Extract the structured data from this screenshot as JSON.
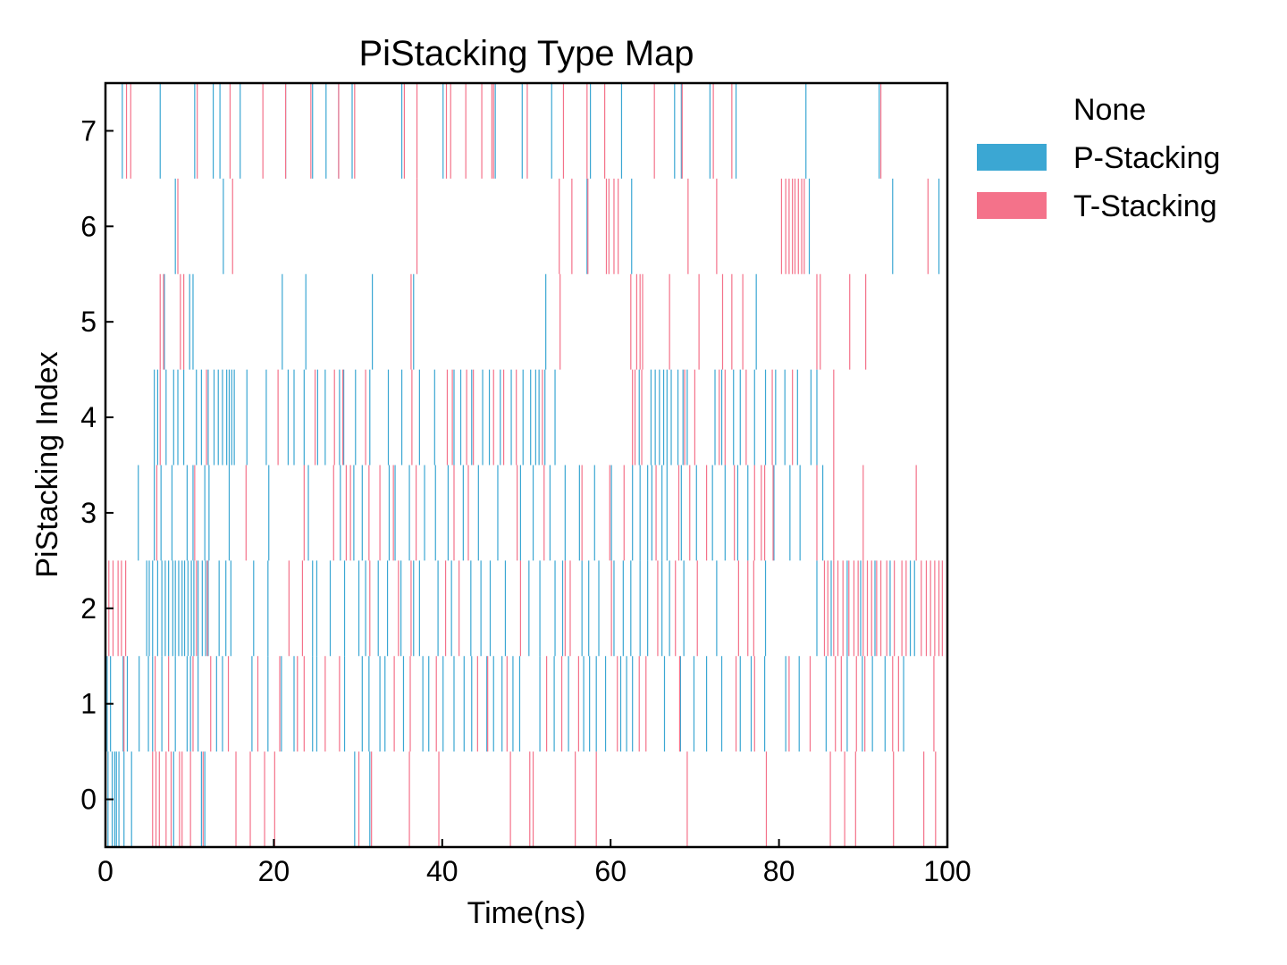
{
  "chart_data": {
    "type": "heatmap",
    "title": "PiStacking Type Map",
    "xlabel": "Time(ns)",
    "ylabel": "PiStacking Index",
    "xlim": [
      0,
      100
    ],
    "ylim": [
      -0.5,
      7.5
    ],
    "x_ticks": [
      "0",
      "20",
      "40",
      "60",
      "80",
      "100"
    ],
    "y_ticks": [
      "0",
      "1",
      "2",
      "3",
      "4",
      "5",
      "6",
      "7"
    ],
    "legend_position": "outside-right",
    "legend": [
      {
        "label": "None",
        "color": "#ffffff"
      },
      {
        "label": "P-Stacking",
        "color": "#3ba7d3"
      },
      {
        "label": "T-Stacking",
        "color": "#f4728a"
      }
    ],
    "rows": [
      {
        "index": 0,
        "p": [
          0.3,
          0.8,
          1.1,
          1.3,
          1.6,
          2.2,
          3.1,
          8.1,
          11.4,
          11.8,
          29.6,
          31.4
        ],
        "t": [
          5.6,
          6.0,
          6.4,
          7.2,
          7.8,
          8.8,
          9.1,
          10.1,
          11.6,
          15.5,
          17.2,
          18.9,
          20.1,
          30.1,
          31.6,
          36.1,
          39.6,
          48.1,
          50.4,
          50.8,
          55.8,
          58.3,
          69.1,
          78.5,
          86.1,
          87.8,
          89.1,
          93.6,
          97.2,
          98.6
        ]
      },
      {
        "index": 1,
        "p": [
          0.2,
          0.6,
          2.1,
          2.6,
          4.0,
          5.1,
          5.6,
          6.7,
          8.3,
          9.7,
          10.1,
          11.0,
          13.2,
          13.9,
          17.4,
          19.3,
          20.9,
          22.4,
          24.6,
          25.1,
          28.4,
          30.5,
          31.3,
          32.6,
          33.2,
          35.4,
          37.7,
          38.4,
          40.1,
          41.4,
          42.6,
          43.5,
          45.3,
          46.1,
          47.1,
          48.4,
          49.2,
          51.6,
          53.3,
          55.0,
          56.8,
          57.5,
          58.3,
          59.4,
          61.2,
          61.9,
          62.6,
          66.4,
          68.3,
          69.9,
          71.4,
          73.2,
          75.4,
          76.7,
          78.3,
          80.8,
          82.4,
          85.6,
          88.1,
          89.9,
          91.1,
          92.6,
          94.8
        ],
        "t": [
          2.2,
          5.9,
          7.5,
          10.4,
          12.5,
          14.6,
          18.1,
          20.7,
          22.8,
          23.6,
          26.1,
          27.8,
          34.3,
          36.2,
          39.3,
          44.2,
          45.4,
          47.7,
          52.4,
          54.2,
          56.2,
          60.8,
          63.4,
          64.2,
          68.2,
          74.9,
          77.1,
          81.2,
          83.7,
          86.7,
          87.4,
          89.2,
          90.2,
          93.5,
          94.2,
          98.4
        ]
      },
      {
        "index": 2,
        "p": [
          4.9,
          5.2,
          5.6,
          6.2,
          6.7,
          7.1,
          7.5,
          8.0,
          8.3,
          8.7,
          9.1,
          9.4,
          9.8,
          10.2,
          10.5,
          11.0,
          11.5,
          11.9,
          12.2,
          13.5,
          14.3,
          14.9,
          17.6,
          19.3,
          24.6,
          25.1,
          26.7,
          28.4,
          30.1,
          30.9,
          32.4,
          33.5,
          35.1,
          36.6,
          37.3,
          39.5,
          41.1,
          43.4,
          44.6,
          45.7,
          47.5,
          50.3,
          51.6,
          53.4,
          54.3,
          56.6,
          57.4,
          58.6,
          60.4,
          61.5,
          62.4,
          63.5,
          64.4,
          66.1,
          67.0,
          68.7,
          72.6,
          78.4,
          84.5,
          86.2,
          88.1,
          89.7,
          91.4,
          93.2,
          95.6,
          96.1
        ],
        "t": [
          0.4,
          0.9,
          1.5,
          1.9,
          2.4,
          10.8,
          12.1,
          21.8,
          23.4,
          31.4,
          34.8,
          36.3,
          40.4,
          42.0,
          49.3,
          54.6,
          55.2,
          60.1,
          65.6,
          67.7,
          70.3,
          75.2,
          76.3,
          77.0,
          85.4,
          85.8,
          86.5,
          87.0,
          87.6,
          88.3,
          88.9,
          89.4,
          90.0,
          90.5,
          91.0,
          91.6,
          92.1,
          92.8,
          93.7,
          94.6,
          95.1,
          96.9,
          97.5,
          98.0,
          98.5,
          99.0,
          99.4
        ]
      },
      {
        "index": 3,
        "p": [
          3.9,
          5.8,
          6.6,
          7.9,
          9.7,
          10.4,
          11.8,
          12.3,
          14.7,
          19.4,
          24.1,
          27.9,
          29.5,
          30.5,
          33.7,
          34.4,
          36.1,
          37.9,
          39.2,
          40.7,
          42.5,
          44.3,
          46.6,
          49.3,
          50.8,
          52.8,
          54.6,
          56.3,
          58.1,
          60.1,
          62.6,
          63.5,
          64.4,
          64.9,
          66.1,
          66.7,
          68.4,
          70.2,
          72.1,
          73.6,
          75.1,
          76.3,
          79.4,
          81.3,
          82.5,
          85.2
        ],
        "t": [
          6.1,
          10.6,
          16.7,
          23.6,
          27.1,
          28.6,
          29.1,
          31.3,
          32.6,
          34.2,
          36.9,
          41.4,
          43.1,
          48.9,
          52.1,
          56.6,
          59.9,
          61.6,
          65.4,
          68.1,
          69.4,
          71.4,
          74.7,
          77.1,
          77.9,
          78.3,
          79.3,
          84.5,
          86.5,
          90.0,
          96.3
        ]
      },
      {
        "index": 4,
        "p": [
          5.8,
          6.2,
          7.2,
          8.1,
          8.6,
          9.3,
          10.8,
          11.4,
          12.2,
          12.9,
          13.4,
          13.9,
          14.4,
          14.7,
          15.0,
          15.3,
          16.8,
          19.1,
          21.7,
          22.4,
          23.6,
          25.2,
          26.1,
          27.8,
          28.3,
          29.7,
          31.4,
          33.6,
          35.2,
          37.3,
          39.1,
          41.4,
          42.2,
          43.5,
          44.8,
          45.6,
          46.9,
          48.2,
          49.6,
          50.5,
          51.1,
          51.5,
          52.2,
          53.4,
          63.4,
          64.8,
          65.3,
          65.8,
          66.3,
          66.7,
          67.2,
          68.0,
          68.6,
          69.1,
          72.4,
          73.2,
          74.6,
          75.4,
          77.1,
          78.4,
          79.6,
          80.7,
          82.2,
          83.8,
          84.5
        ],
        "t": [
          6.5,
          12.0,
          20.5,
          24.9,
          27.2,
          28.2,
          30.9,
          36.4,
          40.6,
          41.2,
          42.9,
          43.7,
          46.1,
          47.3,
          48.8,
          51.9,
          62.6,
          62.9,
          63.7,
          68.8,
          70.0,
          72.9,
          73.6,
          76.1,
          79.2,
          81.6,
          86.5
        ]
      },
      {
        "index": 5,
        "p": [
          7.0,
          10.0,
          10.4,
          21.0,
          23.8,
          31.7,
          36.6,
          52.3,
          77.3
        ],
        "t": [
          6.5,
          6.9,
          8.9,
          9.3,
          36.3,
          54.0,
          62.4,
          63.1,
          63.5,
          63.8,
          67.0,
          70.5,
          73.3,
          74.4,
          75.7,
          84.5,
          84.9,
          88.4,
          90.3
        ]
      },
      {
        "index": 6,
        "p": [
          8.3,
          14.0,
          57.2,
          62.5,
          83.6,
          93.5,
          99.0
        ],
        "t": [
          8.6,
          15.1,
          37.0,
          53.9,
          55.4,
          57.3,
          59.5,
          59.8,
          60.4,
          60.9,
          69.2,
          72.6,
          80.3,
          80.8,
          81.2,
          81.6,
          81.9,
          82.3,
          82.7,
          83.0,
          97.7
        ]
      },
      {
        "index": 7,
        "p": [
          2.0,
          6.5,
          10.6,
          12.8,
          13.6,
          16.0,
          21.4,
          24.6,
          26.2,
          27.7,
          29.3,
          35.2,
          40.1,
          46.3,
          49.5,
          53.0,
          57.6,
          61.3,
          67.6,
          68.4,
          71.8,
          74.9,
          83.2,
          91.9
        ],
        "t": [
          2.5,
          3.0,
          10.9,
          14.8,
          18.7,
          21.4,
          24.4,
          27.7,
          29.6,
          35.5,
          37.0,
          40.5,
          41.0,
          42.8,
          44.7,
          45.9,
          46.1,
          50.1,
          54.4,
          57.2,
          59.3,
          65.2,
          68.5,
          72.2,
          74.4,
          92.1
        ]
      }
    ]
  }
}
